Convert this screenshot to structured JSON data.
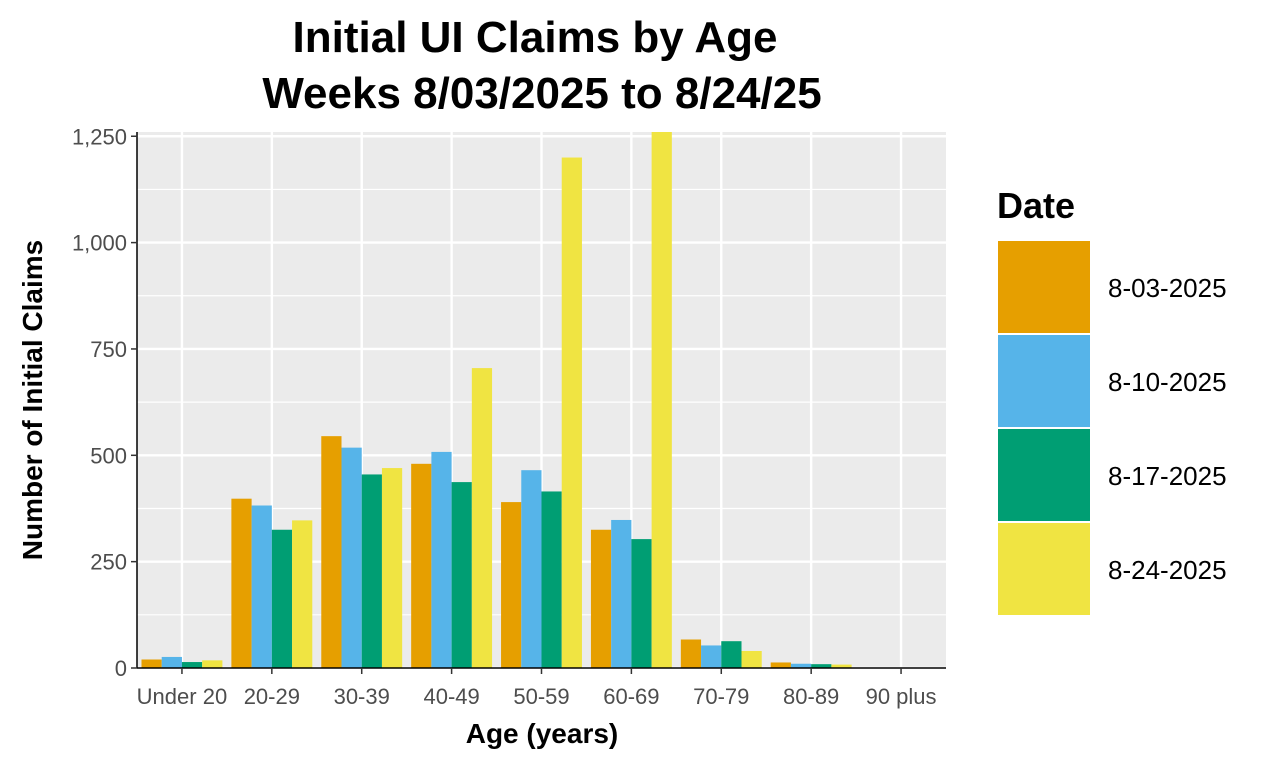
{
  "chart_data": {
    "type": "bar",
    "title": "Initial UI Claims by Age",
    "subtitle": "Weeks  8/03/2025 to 8/24/25",
    "xlabel": "Age (years)",
    "ylabel": "Number of Initial Claims",
    "categories": [
      "Under 20",
      "20-29",
      "30-39",
      "40-49",
      "50-59",
      "60-69",
      "70-79",
      "80-89",
      "90 plus"
    ],
    "series": [
      {
        "name": "8-03-2025",
        "color": "#E69F00",
        "values": [
          20,
          398,
          545,
          480,
          390,
          325,
          67,
          13,
          1
        ]
      },
      {
        "name": "8-10-2025",
        "color": "#56B4E9",
        "values": [
          26,
          382,
          518,
          508,
          465,
          348,
          53,
          10,
          1
        ]
      },
      {
        "name": "8-17-2025",
        "color": "#009E73",
        "values": [
          14,
          325,
          455,
          437,
          415,
          303,
          63,
          9,
          1
        ]
      },
      {
        "name": "8-24-2025",
        "color": "#F0E442",
        "values": [
          18,
          347,
          470,
          705,
          1200,
          1260,
          40,
          8,
          1
        ]
      }
    ],
    "ylim": [
      0,
      1260
    ],
    "yticks": [
      0,
      250,
      500,
      750,
      1000,
      1250
    ],
    "ytick_labels": [
      "0",
      "250",
      "500",
      "750",
      "1,000",
      "1,250"
    ],
    "grid": true,
    "legend": {
      "title": "Date",
      "position": "right"
    },
    "panel_background": "#EBEBEB",
    "grid_color": "#FFFFFF"
  }
}
